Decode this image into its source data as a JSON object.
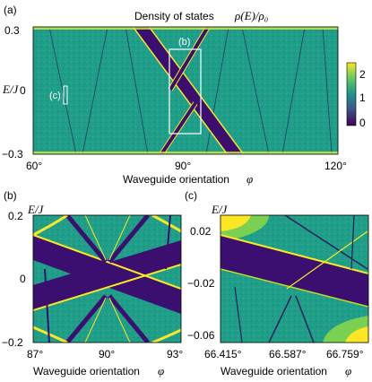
{
  "figure": {
    "panel_a": {
      "label": "(a)",
      "title_text": "Density of states",
      "title_math": "ρ(E)/ρ₀",
      "ylabel": "E/J",
      "xlabel_text": "Waveguide orientation",
      "xlabel_symbol": "φ",
      "xticks": [
        "60°",
        "90°",
        "120°"
      ],
      "yticks": [
        "0.3",
        "0",
        "−0.3"
      ],
      "inset_b": "(b)",
      "inset_c": "(c)",
      "colorbar_ticks": [
        "2",
        "1",
        "0"
      ]
    },
    "panel_b": {
      "label": "(b)",
      "ylabel": "E/J",
      "xlabel_text": "Waveguide orientation",
      "xlabel_symbol": "φ",
      "xticks": [
        "87°",
        "90°",
        "93°"
      ],
      "yticks": [
        "0.2",
        "0",
        "−0.2"
      ]
    },
    "panel_c": {
      "label": "(c)",
      "ylabel": "E/J",
      "xlabel_text": "Waveguide orientation",
      "xlabel_symbol": "φ",
      "xticks": [
        "66.415°",
        "66.587°",
        "66.759°"
      ],
      "yticks": [
        "0.02",
        "−0.02",
        "−0.06"
      ]
    }
  },
  "colors": {
    "teal": "#1f9e89",
    "dark": "#3b0f70",
    "yellow": "#fde725",
    "green": "#5ec962"
  }
}
